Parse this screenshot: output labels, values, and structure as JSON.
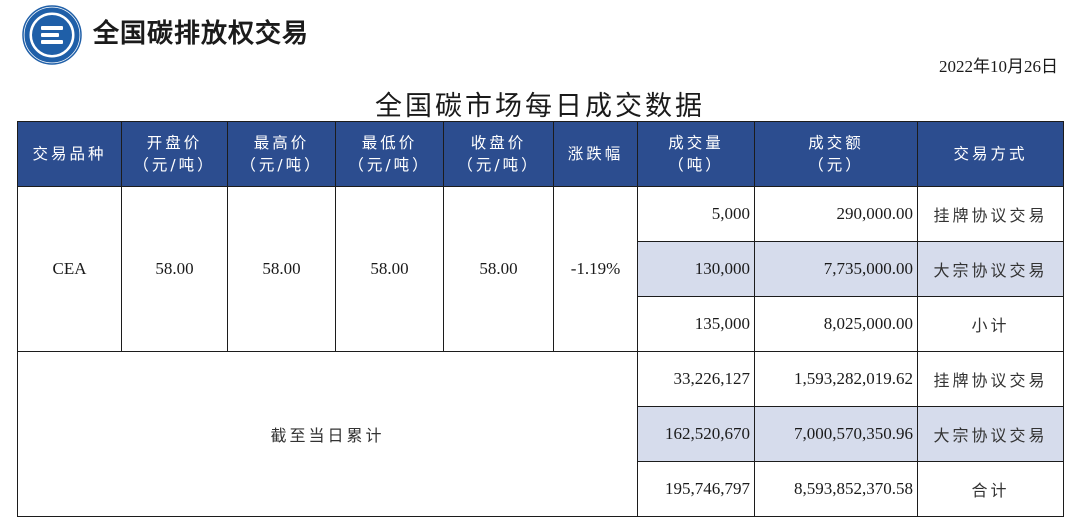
{
  "header": {
    "brand": "全国碳排放权交易",
    "date": "2022年10月26日",
    "title": "全国碳市场每日成交数据"
  },
  "table": {
    "columns": [
      {
        "line1": "交易品种",
        "line2": ""
      },
      {
        "line1": "开盘价",
        "line2": "（元/吨）"
      },
      {
        "line1": "最高价",
        "line2": "（元/吨）"
      },
      {
        "line1": "最低价",
        "line2": "（元/吨）"
      },
      {
        "line1": "收盘价",
        "line2": "（元/吨）"
      },
      {
        "line1": "涨跌幅",
        "line2": ""
      },
      {
        "line1": "成交量",
        "line2": "（吨）"
      },
      {
        "line1": "成交额",
        "line2": "（元）"
      },
      {
        "line1": "交易方式",
        "line2": ""
      }
    ],
    "daily": {
      "product": "CEA",
      "open": "58.00",
      "high": "58.00",
      "low": "58.00",
      "close": "58.00",
      "change": "-1.19%",
      "rows": [
        {
          "volume": "5,000",
          "amount": "290,000.00",
          "method": "挂牌协议交易"
        },
        {
          "volume": "130,000",
          "amount": "7,735,000.00",
          "method": "大宗协议交易"
        },
        {
          "volume": "135,000",
          "amount": "8,025,000.00",
          "method": "小计"
        }
      ]
    },
    "cumulative": {
      "label": "截至当日累计",
      "rows": [
        {
          "volume": "33,226,127",
          "amount": "1,593,282,019.62",
          "method": "挂牌协议交易"
        },
        {
          "volume": "162,520,670",
          "amount": "7,000,570,350.96",
          "method": "大宗协议交易"
        },
        {
          "volume": "195,746,797",
          "amount": "8,593,852,370.58",
          "method": "合计"
        }
      ]
    }
  },
  "colors": {
    "header_bg": "#2c4d8f",
    "highlight_bg": "#d6dcec",
    "logo_blue": "#1f5fa8"
  }
}
